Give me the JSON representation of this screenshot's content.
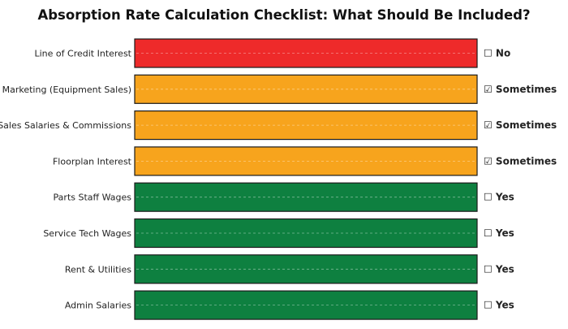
{
  "chart_data": {
    "type": "bar",
    "title": "Absorption Rate Calculation Checklist: What Should Be Included?",
    "categories": [
      "Line of Credit Interest",
      "Marketing (Equipment Sales)",
      "Sales Salaries & Commissions",
      "Floorplan Interest",
      "Parts Staff Wages",
      "Service Tech Wages",
      "Rent & Utilities",
      "Admin Salaries"
    ],
    "values": [
      1,
      1,
      1,
      1,
      1,
      1,
      1,
      1
    ],
    "status_labels": [
      "☐ No",
      "☑ Sometimes",
      "☑ Sometimes",
      "☑ Sometimes",
      "☐ Yes",
      "☐ Yes",
      "☐ Yes",
      "☐ Yes"
    ],
    "colors": [
      "#ee2a2a",
      "#f7a41d",
      "#f7a41d",
      "#f7a41d",
      "#0e8040",
      "#0e8040",
      "#0e8040",
      "#0e8040"
    ],
    "xlim": [
      0,
      1
    ],
    "grid": false,
    "legend": "none"
  }
}
